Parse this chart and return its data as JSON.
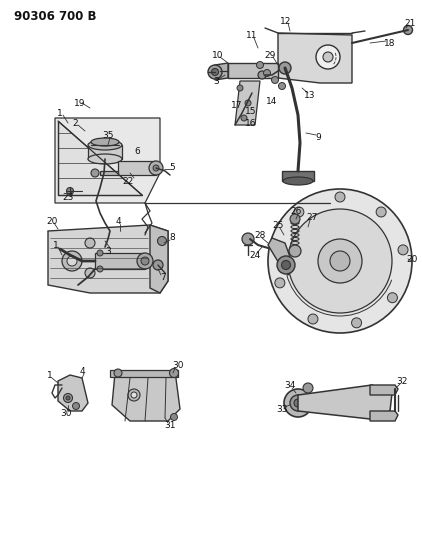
{
  "title": "90306 700 B",
  "bg_color": "#ffffff",
  "line_color": "#333333",
  "text_color": "#111111",
  "label_fontsize": 6.5,
  "title_fontsize": 8.5,
  "fig_width": 4.22,
  "fig_height": 5.33,
  "dpi": 100
}
